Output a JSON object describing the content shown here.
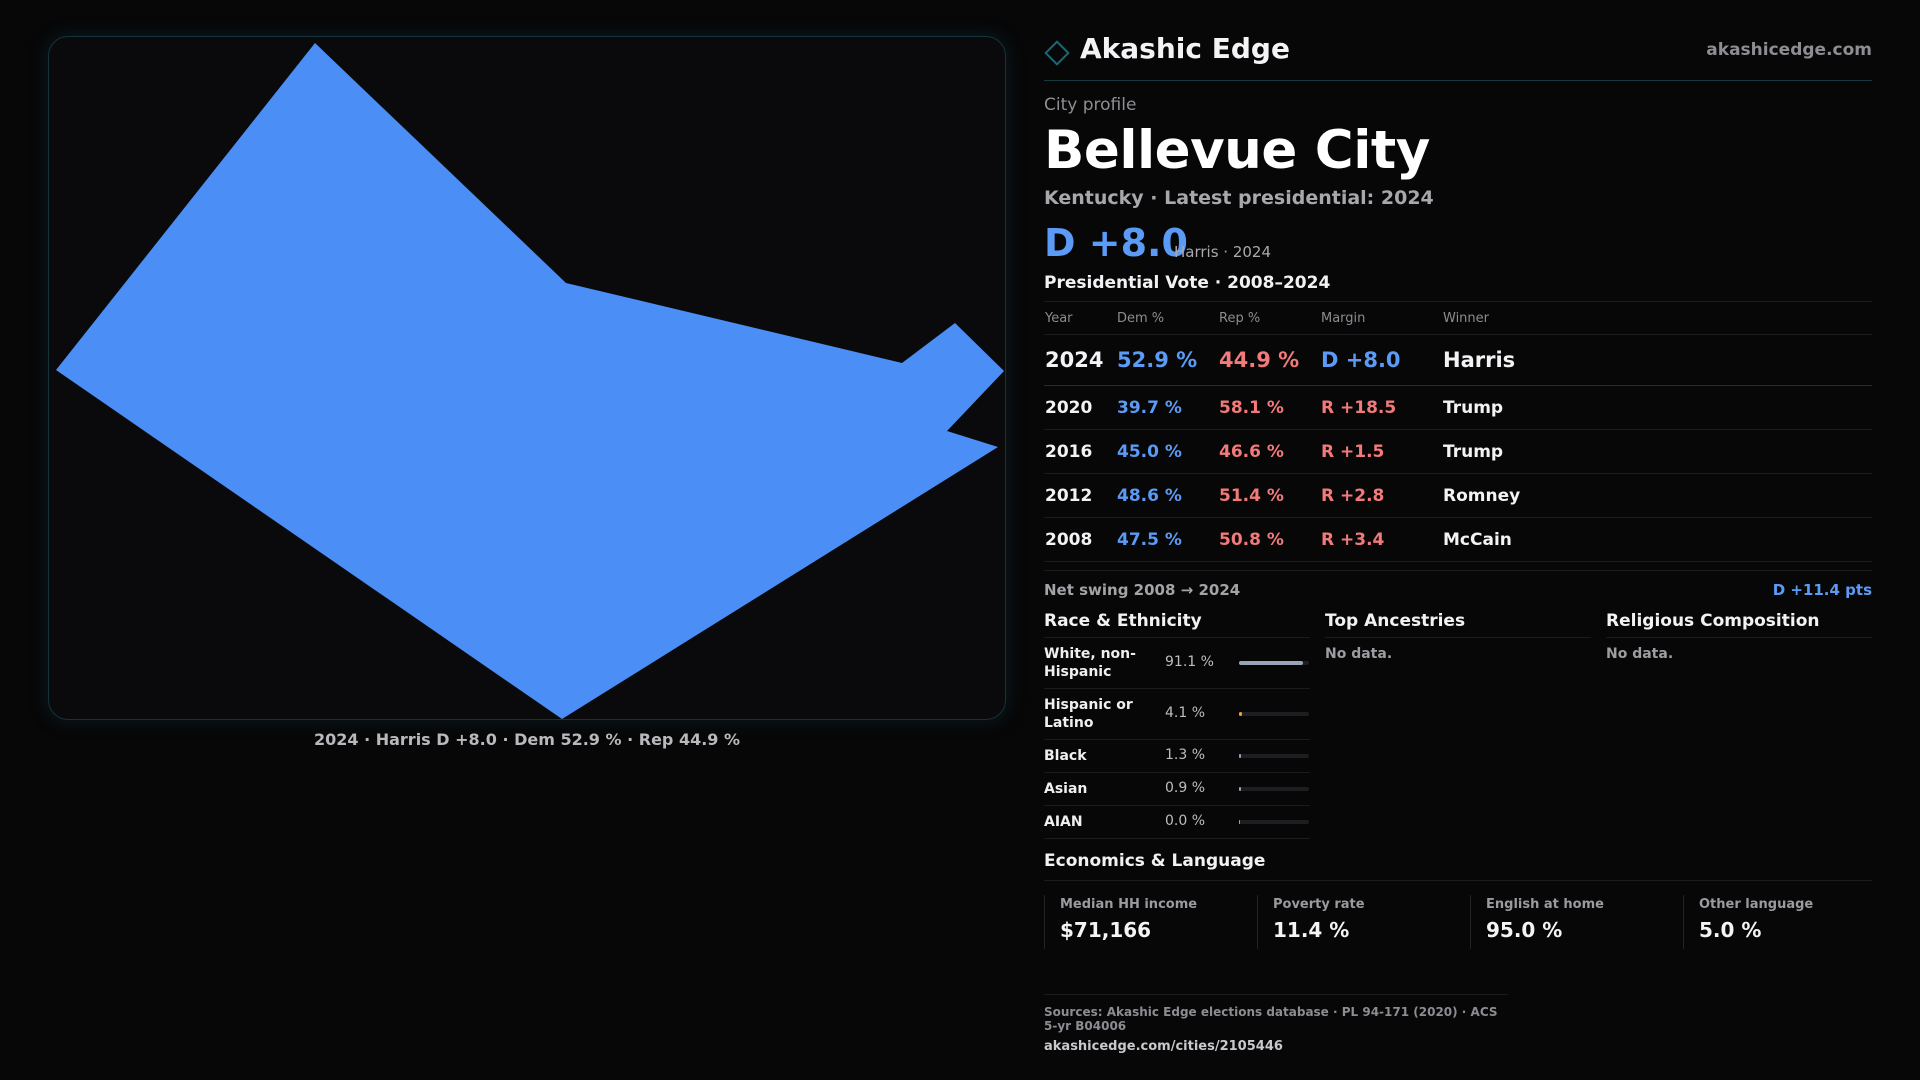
{
  "header": {
    "brand": "Akashic Edge",
    "site": "akashicedge.com",
    "logo": "diamond-icon"
  },
  "map": {
    "caption": "2024 · Harris D +8.0 · Dem 52.9 % · Rep 44.9 %",
    "fill_color": "#4b8ef5"
  },
  "profile": {
    "kicker": "City profile",
    "city": "Bellevue City",
    "subtitle": "Kentucky · Latest presidential: 2024",
    "headline_margin": "D +8.0",
    "headline_note": "Harris · 2024"
  },
  "votes": {
    "title": "Presidential Vote · 2008–2024",
    "columns": {
      "year": "Year",
      "dem": "Dem %",
      "rep": "Rep %",
      "margin": "Margin",
      "winner": "Winner"
    },
    "rows": [
      {
        "year": "2024",
        "dem": "52.9 %",
        "rep": "44.9 %",
        "margin": "D +8.0",
        "party": "D",
        "winner": "Harris"
      },
      {
        "year": "2020",
        "dem": "39.7 %",
        "rep": "58.1 %",
        "margin": "R +18.5",
        "party": "R",
        "winner": "Trump"
      },
      {
        "year": "2016",
        "dem": "45.0 %",
        "rep": "46.6 %",
        "margin": "R +1.5",
        "party": "R",
        "winner": "Trump"
      },
      {
        "year": "2012",
        "dem": "48.6 %",
        "rep": "51.4 %",
        "margin": "R +2.8",
        "party": "R",
        "winner": "Romney"
      },
      {
        "year": "2008",
        "dem": "47.5 %",
        "rep": "50.8 %",
        "margin": "R +3.4",
        "party": "R",
        "winner": "McCain"
      }
    ],
    "swing_label": "Net swing 2008 → 2024",
    "swing_value": "D +11.4 pts"
  },
  "race": {
    "title": "Race & Ethnicity",
    "rows": [
      {
        "label": "White, non-Hispanic",
        "pct": "91.1 %",
        "value": 91.1,
        "color": "#9aa3b8"
      },
      {
        "label": "Hispanic or Latino",
        "pct": "4.1 %",
        "value": 4.1,
        "color": "#e8a33a"
      },
      {
        "label": "Black",
        "pct": "1.3 %",
        "value": 1.3,
        "color": "#9aa3b8"
      },
      {
        "label": "Asian",
        "pct": "0.9 %",
        "value": 0.9,
        "color": "#9aa3b8"
      },
      {
        "label": "AIAN",
        "pct": "0.0 %",
        "value": 0.0,
        "color": "#9aa3b8"
      }
    ]
  },
  "ancestry": {
    "title": "Top Ancestries",
    "empty": "No data."
  },
  "religion": {
    "title": "Religious Composition",
    "empty": "No data."
  },
  "economics": {
    "title": "Economics & Language",
    "stats": [
      {
        "label": "Median HH income",
        "value": "$71,166"
      },
      {
        "label": "Poverty rate",
        "value": "11.4 %"
      },
      {
        "label": "English at home",
        "value": "95.0 %"
      },
      {
        "label": "Other language",
        "value": "5.0 %"
      }
    ]
  },
  "sources": {
    "line": "Sources: Akashic Edge elections database · PL 94-171 (2020) · ACS 5-yr B04006",
    "url": "akashicedge.com/cities/2105446"
  }
}
